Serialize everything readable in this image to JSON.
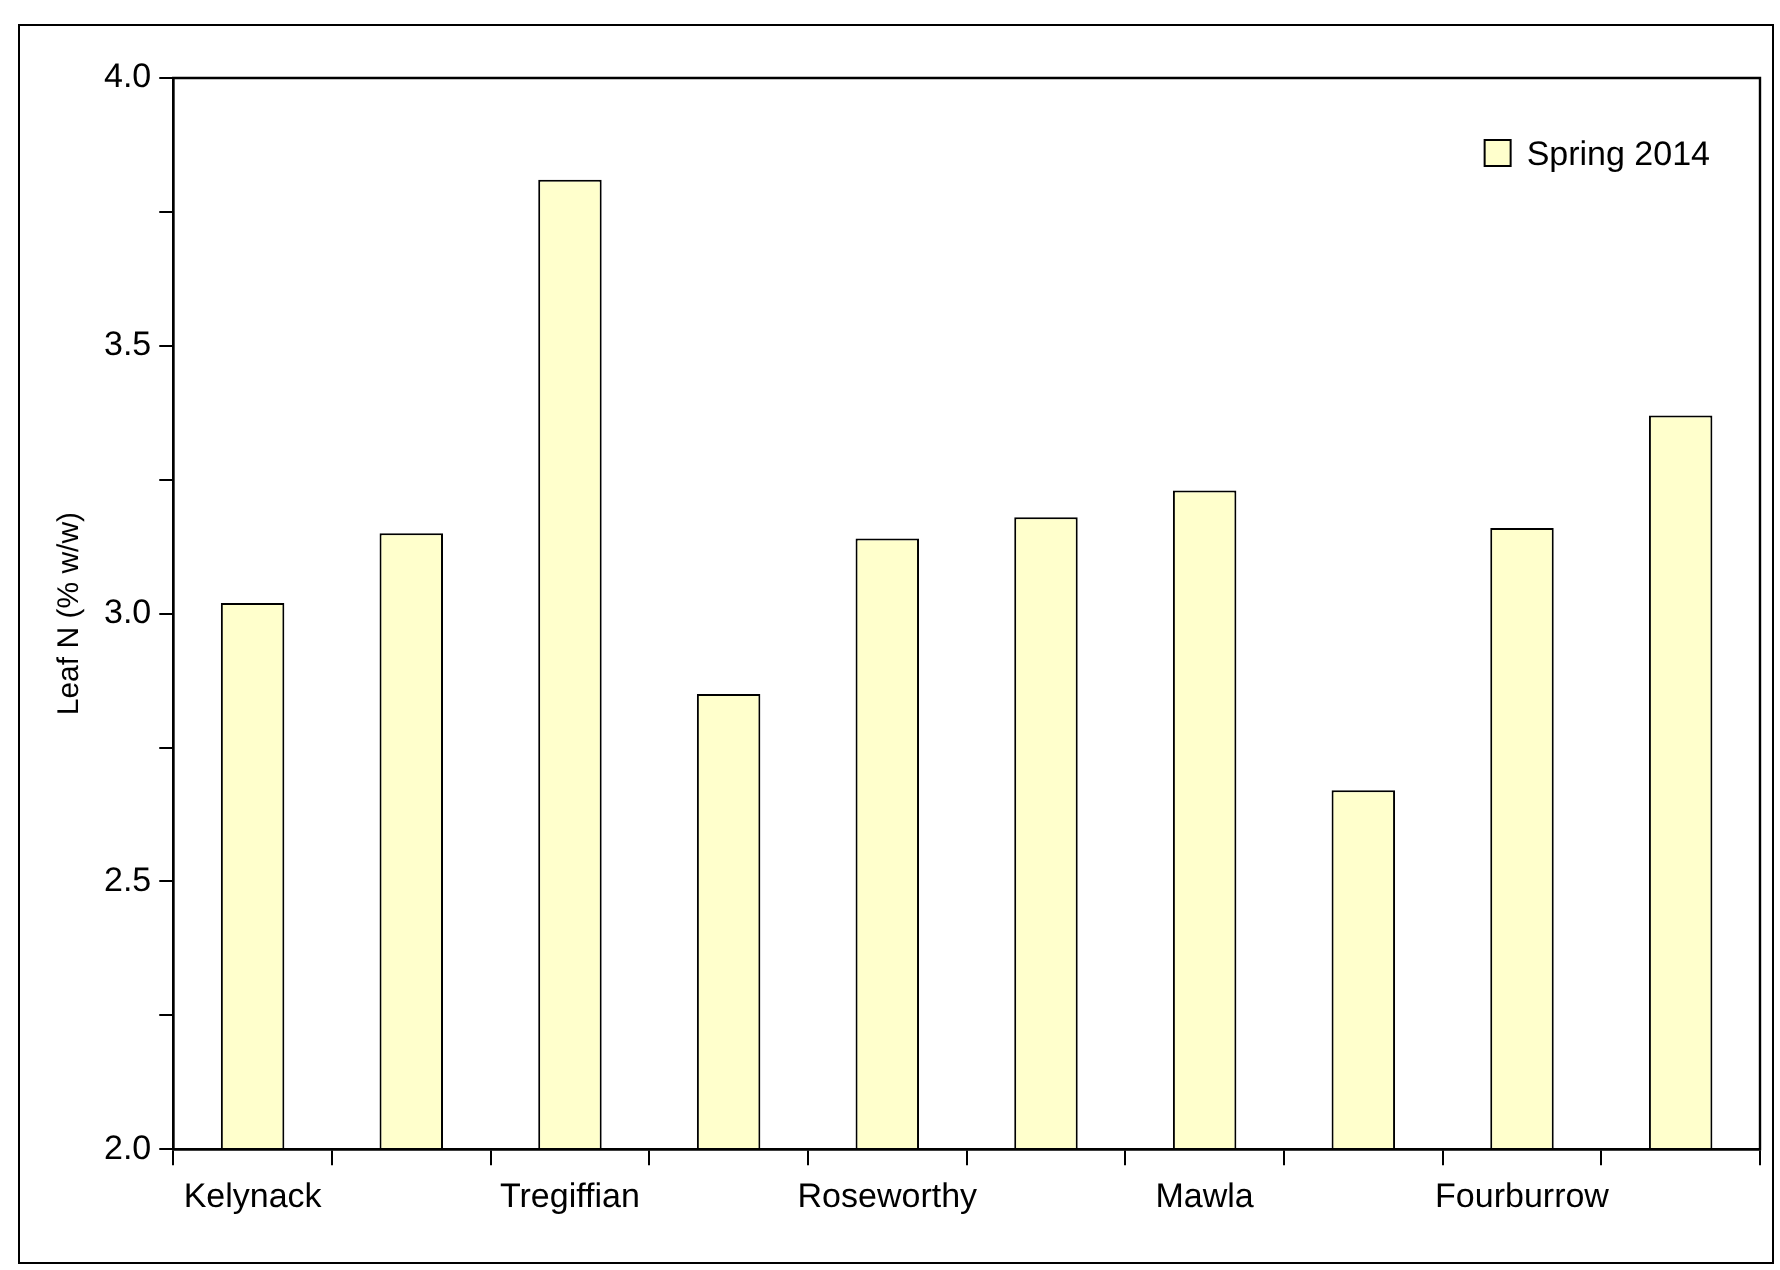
{
  "chart_data": {
    "type": "bar",
    "ylabel": "Leaf N (% w/w)",
    "categories": [
      "Kelynack",
      null,
      "Tregiffian",
      null,
      "Roseworthy",
      null,
      "Mawla",
      null,
      "Fourburrow",
      null
    ],
    "series": [
      {
        "name": "Spring 2014",
        "color": "#ffffcc",
        "values": [
          3.02,
          3.15,
          3.81,
          2.85,
          3.14,
          3.18,
          3.23,
          2.67,
          3.16,
          3.37
        ]
      }
    ],
    "ylim": [
      2.0,
      4.0
    ],
    "yticks": [
      {
        "value": 2.0,
        "label": "2.0"
      },
      {
        "value": 2.25,
        "label": null
      },
      {
        "value": 2.5,
        "label": "2.5"
      },
      {
        "value": 2.75,
        "label": null
      },
      {
        "value": 3.0,
        "label": "3.0"
      },
      {
        "value": 3.25,
        "label": null
      },
      {
        "value": 3.5,
        "label": "3.5"
      },
      {
        "value": 3.75,
        "label": null
      },
      {
        "value": 4.0,
        "label": "4.0"
      }
    ],
    "grid": false,
    "legend": "top right"
  }
}
